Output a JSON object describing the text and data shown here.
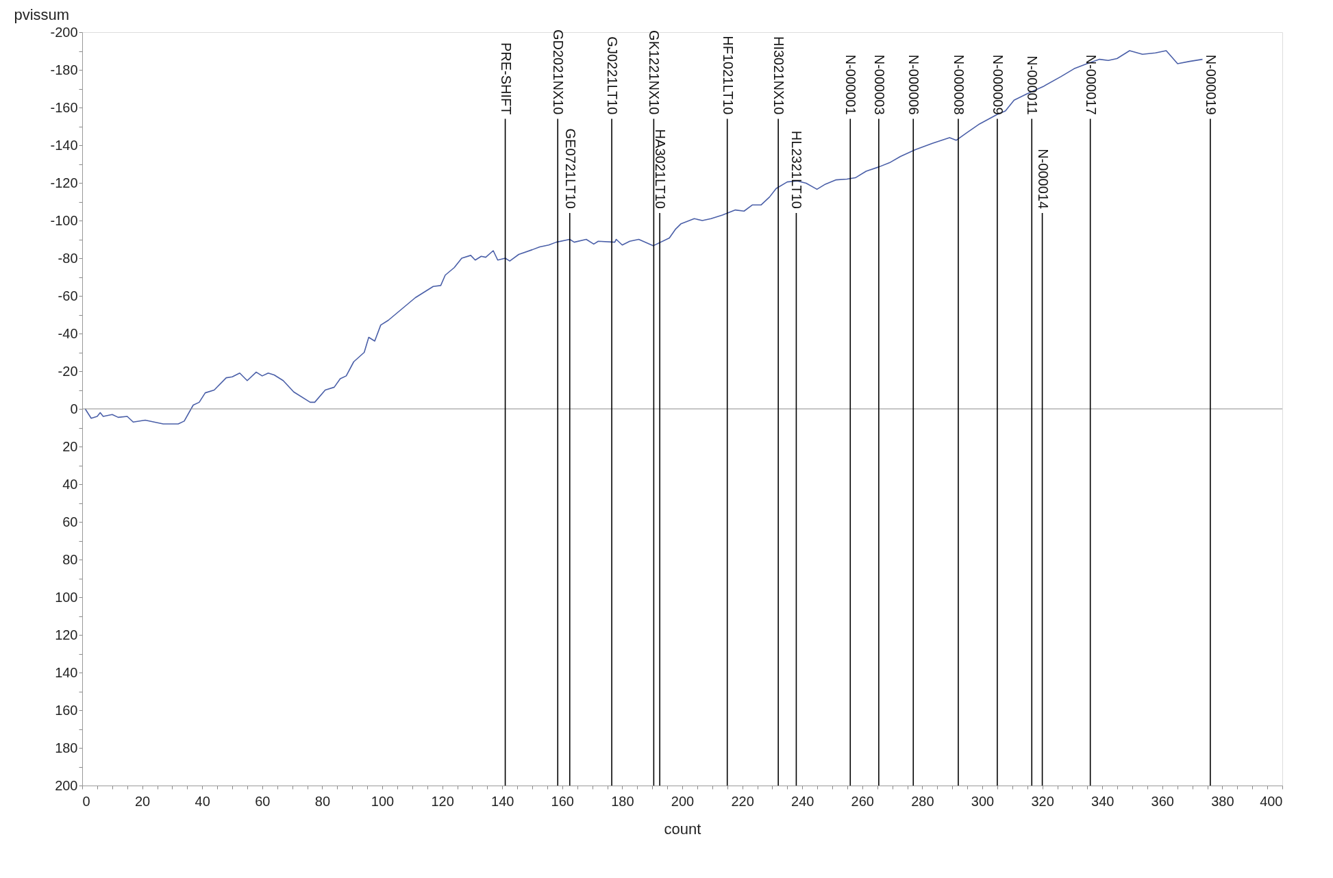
{
  "chart_data": {
    "type": "line",
    "xlabel": "count",
    "ylabel": "pvissum",
    "xlim": [
      0,
      400
    ],
    "ylim": [
      200,
      -200
    ],
    "xticks": [
      0,
      {
        "value": 5,
        "label": null
      },
      {
        "value": 10,
        "label": null
      },
      {
        "value": 15,
        "label": null
      },
      20,
      {
        "value": 25,
        "label": null
      },
      {
        "value": 30,
        "label": null
      },
      {
        "value": 35,
        "label": null
      },
      40,
      {
        "value": 45,
        "label": null
      },
      {
        "value": 50,
        "label": null
      },
      {
        "value": 55,
        "label": null
      },
      60,
      {
        "value": 65,
        "label": null
      },
      {
        "value": 70,
        "label": null
      },
      {
        "value": 75,
        "label": null
      },
      80,
      {
        "value": 85,
        "label": null
      },
      {
        "value": 90,
        "label": null
      },
      {
        "value": 95,
        "label": null
      },
      100,
      {
        "value": 105,
        "label": null
      },
      {
        "value": 110,
        "label": null
      },
      {
        "value": 115,
        "label": null
      },
      120,
      {
        "value": 125,
        "label": null
      },
      {
        "value": 130,
        "label": null
      },
      {
        "value": 135,
        "label": null
      },
      140,
      {
        "value": 145,
        "label": null
      },
      {
        "value": 150,
        "label": null
      },
      {
        "value": 155,
        "label": null
      },
      160,
      {
        "value": 165,
        "label": null
      },
      {
        "value": 170,
        "label": null
      },
      {
        "value": 175,
        "label": null
      },
      180,
      {
        "value": 185,
        "label": null
      },
      {
        "value": 190,
        "label": null
      },
      {
        "value": 195,
        "label": null
      },
      200,
      {
        "value": 205,
        "label": null
      },
      {
        "value": 210,
        "label": null
      },
      {
        "value": 215,
        "label": null
      },
      220,
      {
        "value": 225,
        "label": null
      },
      {
        "value": 230,
        "label": null
      },
      {
        "value": 235,
        "label": null
      },
      240,
      {
        "value": 245,
        "label": null
      },
      {
        "value": 250,
        "label": null
      },
      {
        "value": 255,
        "label": null
      },
      260,
      {
        "value": 265,
        "label": null
      },
      {
        "value": 270,
        "label": null
      },
      {
        "value": 275,
        "label": null
      },
      280,
      {
        "value": 285,
        "label": null
      },
      {
        "value": 290,
        "label": null
      },
      {
        "value": 295,
        "label": null
      },
      300,
      {
        "value": 305,
        "label": null
      },
      {
        "value": 310,
        "label": null
      },
      {
        "value": 315,
        "label": null
      },
      320,
      {
        "value": 325,
        "label": null
      },
      {
        "value": 330,
        "label": null
      },
      {
        "value": 335,
        "label": null
      },
      340,
      {
        "value": 345,
        "label": null
      },
      {
        "value": 350,
        "label": null
      },
      {
        "value": 355,
        "label": null
      },
      360,
      {
        "value": 365,
        "label": null
      },
      {
        "value": 370,
        "label": null
      },
      {
        "value": 375,
        "label": null
      },
      380,
      {
        "value": 385,
        "label": null
      },
      {
        "value": 390,
        "label": null
      },
      {
        "value": 395,
        "label": null
      },
      400
    ],
    "yticks": [
      -200,
      {
        "value": -190,
        "label": null
      },
      -180,
      {
        "value": -170,
        "label": null
      },
      -160,
      {
        "value": -150,
        "label": null
      },
      -140,
      {
        "value": -130,
        "label": null
      },
      -120,
      {
        "value": -110,
        "label": null
      },
      -100,
      {
        "value": -90,
        "label": null
      },
      -80,
      {
        "value": -70,
        "label": null
      },
      -60,
      {
        "value": -50,
        "label": null
      },
      -40,
      {
        "value": -30,
        "label": null
      },
      -20,
      {
        "value": -10,
        "label": null
      },
      0,
      {
        "value": 10,
        "label": null
      },
      20,
      {
        "value": 30,
        "label": null
      },
      40,
      {
        "value": 50,
        "label": null
      },
      60,
      {
        "value": 70,
        "label": null
      },
      80,
      {
        "value": 90,
        "label": null
      },
      100,
      {
        "value": 110,
        "label": null
      },
      120,
      {
        "value": 130,
        "label": null
      },
      140,
      {
        "value": 150,
        "label": null
      },
      160,
      {
        "value": 170,
        "label": null
      },
      180,
      {
        "value": 190,
        "label": null
      },
      200
    ],
    "grid": false,
    "marker": "none",
    "line_style": "solid",
    "series": [
      {
        "color": "#4a5fa8",
        "x": [
          1,
          3,
          5,
          6,
          7,
          10,
          12,
          15,
          17,
          21,
          27,
          32,
          34,
          37,
          39,
          41,
          44,
          48,
          50,
          52.5,
          55,
          58,
          60,
          62,
          64,
          67,
          70.5,
          76,
          77.5,
          81,
          84,
          86,
          88,
          90.5,
          94,
          95.5,
          97.5,
          99.5,
          102,
          105,
          108,
          111,
          115,
          117,
          119.5,
          121,
          124,
          126.5,
          129.5,
          131,
          133,
          134.5,
          137,
          138.5,
          141,
          142.5,
          145.5,
          150,
          152.5,
          155.5,
          158,
          162.5,
          164,
          168,
          170.5,
          172,
          177.5,
          178,
          180,
          182.5,
          185.5,
          190.3,
          195.7,
          197.7,
          199.6,
          204,
          206.7,
          209.6,
          213.4,
          217.7,
          220.6,
          223.4,
          226.3,
          229.1,
          231.3,
          235,
          238.4,
          241.3,
          244.9,
          247.7,
          251.3,
          254.9,
          257.7,
          261.3,
          265.6,
          269.1,
          272.7,
          277.7,
          283.4,
          289.1,
          291.3,
          294.9,
          299.1,
          304.9,
          307.7,
          310.6,
          314.9,
          320.6,
          326.3,
          330.6,
          334.9,
          339.1,
          342,
          344.9,
          349.1,
          353.4,
          357.7,
          361.3,
          365.1,
          369.1,
          373.4
        ],
        "values": [
          0,
          5,
          4,
          2,
          4,
          3,
          4.5,
          4,
          7,
          6,
          8,
          8,
          6.5,
          -2,
          -3.5,
          -8.5,
          -10,
          -16.5,
          -17,
          -19,
          -15,
          -19.5,
          -17.5,
          -19,
          -18,
          -15,
          -9,
          -3.5,
          -3.5,
          -10,
          -11.5,
          -16,
          -17.5,
          -25,
          -30,
          -38,
          -36,
          -44.5,
          -47,
          -51,
          -55,
          -59,
          -63,
          -65,
          -65.5,
          -71,
          -75,
          -80,
          -81.5,
          -79,
          -81,
          -80.5,
          -84,
          -79,
          -80,
          -78.5,
          -82,
          -84.5,
          -86,
          -87,
          -88.5,
          -90,
          -88.5,
          -90,
          -87.5,
          -89,
          -88.5,
          -90,
          -87,
          -89,
          -90,
          -86.6,
          -90.7,
          -95.3,
          -98.3,
          -101,
          -100,
          -101,
          -102.9,
          -105.6,
          -105,
          -108.3,
          -108.3,
          -112.5,
          -117,
          -120.5,
          -121,
          -119.8,
          -116.6,
          -119.3,
          -121.6,
          -122,
          -122.7,
          -126.2,
          -128.5,
          -130.7,
          -134,
          -137.6,
          -141,
          -144,
          -142.6,
          -146.7,
          -151.3,
          -156.3,
          -158.2,
          -163.9,
          -167.3,
          -171.4,
          -176.5,
          -180.6,
          -183.3,
          -185.6,
          -185,
          -186,
          -190.2,
          -188.3,
          -189,
          -190.2,
          -183.3,
          -184.5,
          -185.6
        ]
      }
    ],
    "ref_lines": [
      {
        "axis": "y",
        "value": 0,
        "color": "#8c8c8c"
      },
      {
        "axis": "x",
        "value": 141,
        "label": "PRE-SHIFT",
        "color": "#000000"
      },
      {
        "axis": "x",
        "value": 158.5,
        "label": "GD2021NX10",
        "color": "#000000"
      },
      {
        "axis": "x",
        "value": 162.5,
        "label": "GE0721LT10",
        "color": "#000000"
      },
      {
        "axis": "x",
        "value": 176.5,
        "label": "GJ0221LT10",
        "color": "#000000"
      },
      {
        "axis": "x",
        "value": 190.5,
        "label": "GK1221NX10",
        "color": "#000000"
      },
      {
        "axis": "x",
        "value": 192.5,
        "label": "HA3021LT10",
        "color": "#000000"
      },
      {
        "axis": "x",
        "value": 215,
        "label": "HF1021LT10",
        "color": "#000000"
      },
      {
        "axis": "x",
        "value": 232,
        "label": "HI3021NX10",
        "color": "#000000"
      },
      {
        "axis": "x",
        "value": 238,
        "label": "HL2321LT10",
        "color": "#000000"
      },
      {
        "axis": "x",
        "value": 256,
        "label": "N-000001",
        "color": "#000000"
      },
      {
        "axis": "x",
        "value": 265.5,
        "label": "N-000003",
        "color": "#000000"
      },
      {
        "axis": "x",
        "value": 277,
        "label": "N-000006",
        "color": "#000000"
      },
      {
        "axis": "x",
        "value": 292,
        "label": "N-000008",
        "color": "#000000"
      },
      {
        "axis": "x",
        "value": 305,
        "label": "N-000009",
        "color": "#000000"
      },
      {
        "axis": "x",
        "value": 316.5,
        "label": "N-000011",
        "color": "#000000"
      },
      {
        "axis": "x",
        "value": 320,
        "label": "N-000014",
        "color": "#000000"
      },
      {
        "axis": "x",
        "value": 336,
        "label": "N-000017",
        "color": "#000000"
      },
      {
        "axis": "x",
        "value": 376,
        "label": "N-000019",
        "color": "#000000"
      }
    ]
  }
}
